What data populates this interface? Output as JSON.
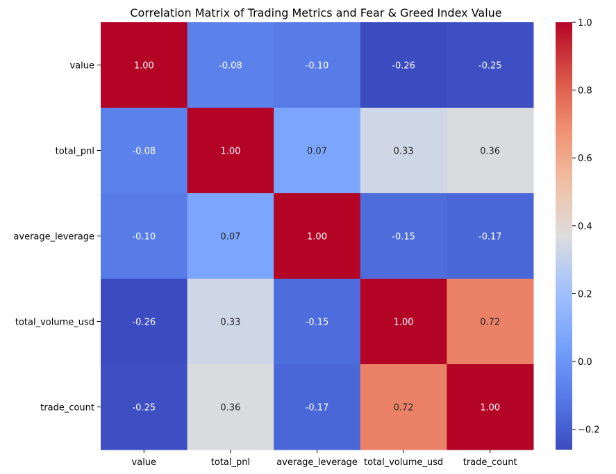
{
  "chart_data": {
    "type": "heatmap",
    "title": "Correlation Matrix of Trading Metrics and Fear & Greed Index Value",
    "row_labels": [
      "value",
      "total_pnl",
      "average_leverage",
      "total_volume_usd",
      "trade_count"
    ],
    "col_labels": [
      "value",
      "total_pnl",
      "average_leverage",
      "total_volume_usd",
      "trade_count"
    ],
    "values": [
      [
        1.0,
        -0.08,
        -0.1,
        -0.26,
        -0.25
      ],
      [
        -0.08,
        1.0,
        0.07,
        0.33,
        0.36
      ],
      [
        -0.1,
        0.07,
        1.0,
        -0.15,
        -0.17
      ],
      [
        -0.26,
        0.33,
        -0.15,
        1.0,
        0.72
      ],
      [
        -0.25,
        0.36,
        -0.17,
        0.72,
        1.0
      ]
    ],
    "cell_labels": [
      [
        "1.00",
        "-0.08",
        "-0.10",
        "-0.26",
        "-0.25"
      ],
      [
        "-0.08",
        "1.00",
        "0.07",
        "0.33",
        "0.36"
      ],
      [
        "-0.10",
        "0.07",
        "1.00",
        "-0.15",
        "-0.17"
      ],
      [
        "-0.26",
        "0.33",
        "-0.15",
        "1.00",
        "0.72"
      ],
      [
        "-0.25",
        "0.36",
        "-0.17",
        "0.72",
        "1.00"
      ]
    ],
    "colormap": "coolwarm",
    "colorbar": {
      "range": [
        -0.26,
        1.0
      ],
      "ticks": [
        -0.2,
        0.0,
        0.2,
        0.4,
        0.6,
        0.8,
        1.0
      ],
      "tick_labels": [
        "−0.2",
        "0.0",
        "0.2",
        "0.4",
        "0.6",
        "0.8",
        "1.0"
      ]
    }
  }
}
